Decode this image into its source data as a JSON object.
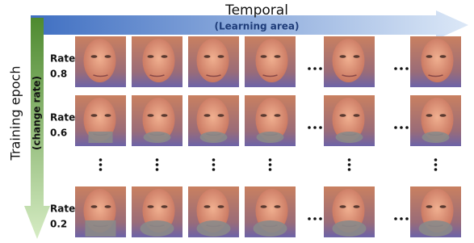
{
  "header": {
    "title": "Temporal",
    "subtitle": "(Learning area)"
  },
  "side": {
    "title": "Training epoch",
    "subtitle": "(change rate)"
  },
  "rows": [
    {
      "label": "Rate",
      "value": 0.8
    },
    {
      "label": "Rate",
      "value": 0.6
    },
    {
      "label": "Rate",
      "value": 0.2
    }
  ]
}
